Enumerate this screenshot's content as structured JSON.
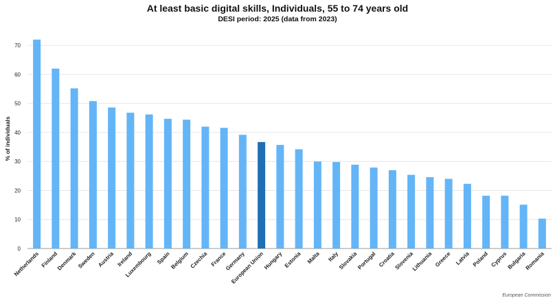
{
  "chart_data": {
    "type": "bar",
    "title": "At least basic digital skills, Individuals, 55 to 74 years old",
    "subtitle": "DESI period: 2025 (data from 2023)",
    "ylabel": "% of individuals",
    "ylim": [
      0,
      75
    ],
    "yticks": [
      0,
      10,
      20,
      30,
      40,
      50,
      60,
      70
    ],
    "grid": true,
    "bar_color": "#63b5f7",
    "highlight_color": "#1f6fb5",
    "highlight_category": "European Union",
    "categories": [
      "Netherlands",
      "Finland",
      "Denmark",
      "Sweden",
      "Austria",
      "Ireland",
      "Luxembourg",
      "Spain",
      "Belgium",
      "Czechia",
      "France",
      "Germany",
      "European Union",
      "Hungary",
      "Estonia",
      "Malta",
      "Italy",
      "Slovakia",
      "Portugal",
      "Croatia",
      "Slovenia",
      "Lithuania",
      "Greece",
      "Latvia",
      "Poland",
      "Cyprus",
      "Bulgaria",
      "Romania"
    ],
    "values": [
      72.0,
      62.0,
      55.2,
      50.8,
      48.6,
      46.8,
      46.2,
      44.7,
      44.4,
      42.0,
      41.6,
      39.2,
      36.7,
      35.7,
      34.2,
      30.0,
      29.8,
      28.9,
      27.9,
      27.0,
      25.4,
      24.6,
      24.0,
      22.3,
      18.2,
      18.2,
      15.1,
      10.3
    ]
  },
  "credit": "European Commission"
}
